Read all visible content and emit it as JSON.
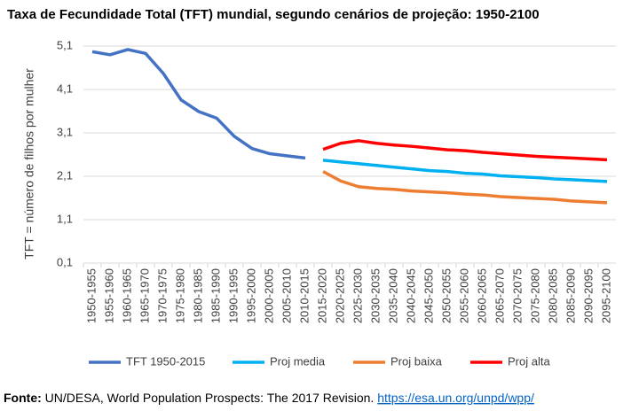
{
  "chart_data": {
    "type": "line",
    "title": "Taxa de Fecundidade Total (TFT) mundial, segundo cenários de projeção: 1950-2100",
    "y_label": "TFT = número de filhos por mulher",
    "categories": [
      "1950-1955",
      "1955-1960",
      "1960-1965",
      "1965-1970",
      "1970-1975",
      "1975-1980",
      "1980-1985",
      "1985-1990",
      "1990-1995",
      "1995-2000",
      "2000-2005",
      "2005-2010",
      "2010-2015",
      "2015-2020",
      "2020-2025",
      "2025-2030",
      "2030-2035",
      "2035-2040",
      "2040-2045",
      "2045-2050",
      "2050-2055",
      "2055-2060",
      "2060-2065",
      "2065-2070",
      "2070-2075",
      "2075-2080",
      "2080-2085",
      "2085-2090",
      "2090-2095",
      "2095-2100"
    ],
    "series": [
      {
        "name": "TFT 1950-2015",
        "color": "#4472c4",
        "values": [
          4.97,
          4.9,
          5.02,
          4.93,
          4.47,
          3.86,
          3.59,
          3.44,
          3.02,
          2.74,
          2.62,
          2.57,
          2.52,
          null,
          null,
          null,
          null,
          null,
          null,
          null,
          null,
          null,
          null,
          null,
          null,
          null,
          null,
          null,
          null,
          null
        ]
      },
      {
        "name": "Proj media",
        "color": "#00b0f0",
        "values": [
          null,
          null,
          null,
          null,
          null,
          null,
          null,
          null,
          null,
          null,
          null,
          null,
          null,
          2.47,
          2.43,
          2.39,
          2.35,
          2.31,
          2.27,
          2.23,
          2.21,
          2.17,
          2.15,
          2.11,
          2.09,
          2.07,
          2.04,
          2.02,
          2.0,
          1.98
        ]
      },
      {
        "name": "Proj baixa",
        "color": "#ed7d31",
        "values": [
          null,
          null,
          null,
          null,
          null,
          null,
          null,
          null,
          null,
          null,
          null,
          null,
          null,
          2.21,
          1.99,
          1.86,
          1.82,
          1.8,
          1.76,
          1.74,
          1.72,
          1.69,
          1.67,
          1.63,
          1.61,
          1.59,
          1.57,
          1.53,
          1.51,
          1.49
        ]
      },
      {
        "name": "Proj alta",
        "color": "#ff0000",
        "values": [
          null,
          null,
          null,
          null,
          null,
          null,
          null,
          null,
          null,
          null,
          null,
          null,
          null,
          2.72,
          2.86,
          2.92,
          2.86,
          2.82,
          2.79,
          2.75,
          2.71,
          2.69,
          2.65,
          2.62,
          2.59,
          2.56,
          2.54,
          2.52,
          2.5,
          2.48
        ]
      }
    ],
    "ylim": [
      0.1,
      5.1
    ],
    "yticks": [
      {
        "value": 0.1,
        "label": "0,1"
      },
      {
        "value": 1.1,
        "label": "1,1"
      },
      {
        "value": 2.1,
        "label": "2,1"
      },
      {
        "value": 3.1,
        "label": "3,1"
      },
      {
        "value": 4.1,
        "label": "4,1"
      },
      {
        "value": 5.1,
        "label": "5,1"
      }
    ],
    "grid": true,
    "legend": "bottom"
  },
  "footer": {
    "label": "Fonte:",
    "text": "UN/DESA, World Population Prospects: The 2017 Revision.",
    "link": "https://esa.un.org/unpd/wpp/"
  }
}
